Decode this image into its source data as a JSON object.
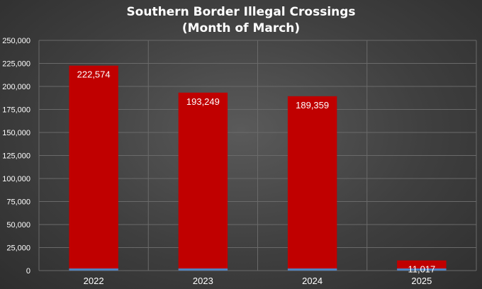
{
  "chart_data": {
    "type": "bar",
    "title_line1": "Southern Border Illegal Crossings",
    "title_line2": "(Month of March)",
    "categories": [
      "2022",
      "2023",
      "2024",
      "2025"
    ],
    "values": [
      222574,
      193249,
      189359,
      11017
    ],
    "data_labels": [
      "222,574",
      "193,249",
      "189,359",
      "11,017"
    ],
    "ylim": [
      0,
      250000
    ],
    "yticks": [
      0,
      25000,
      50000,
      75000,
      100000,
      125000,
      150000,
      175000,
      200000,
      225000,
      250000
    ],
    "ytick_labels": [
      "0",
      "25,000",
      "50,000",
      "75,000",
      "100,000",
      "125,000",
      "150,000",
      "175,000",
      "200,000",
      "225,000",
      "250,000"
    ],
    "grid": true,
    "bar_color": "#c00000",
    "bar_base_accent_color": "#4f81bd",
    "grid_color": "#6a6a6a"
  }
}
